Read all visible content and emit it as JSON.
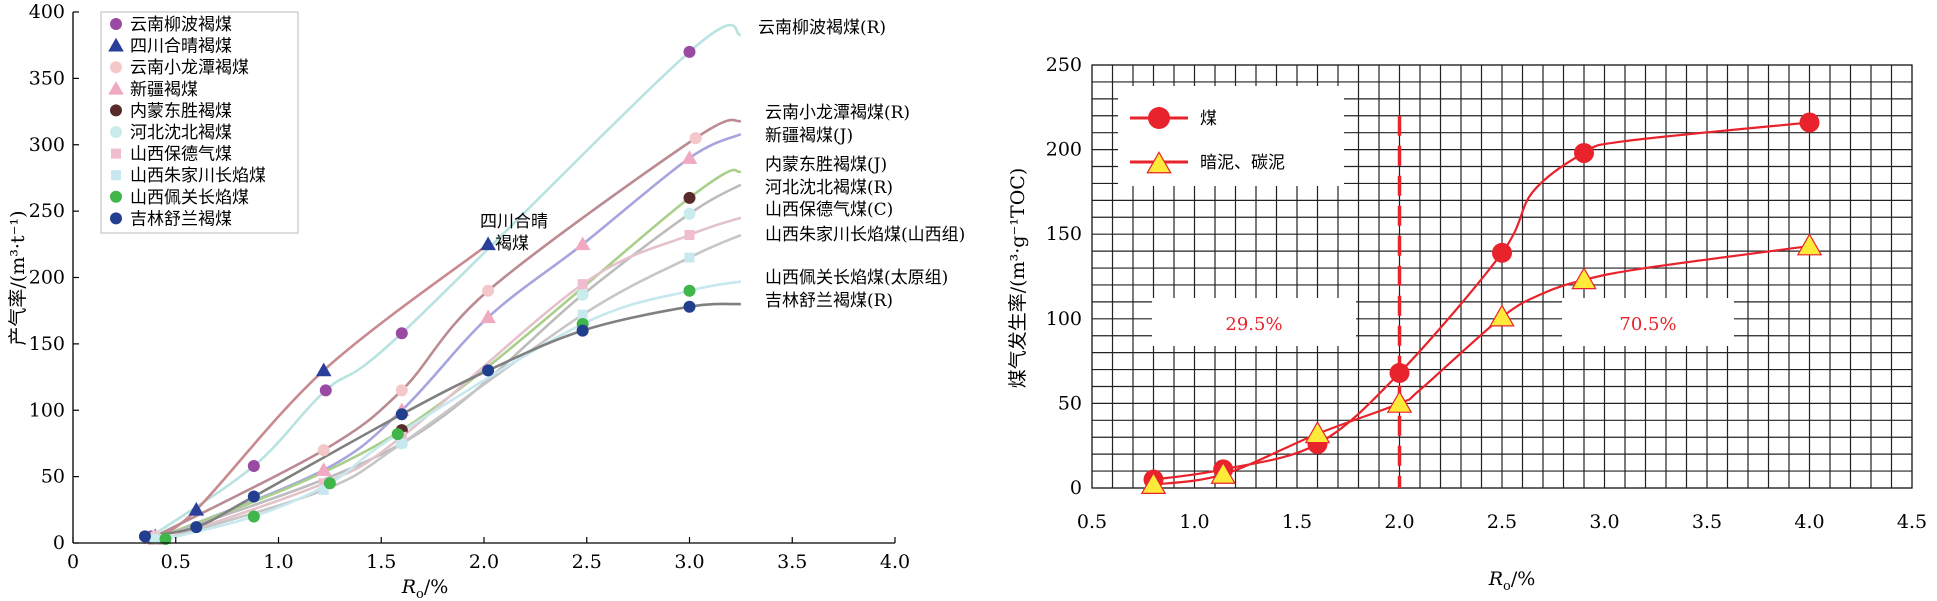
{
  "chart_data": [
    {
      "type": "line",
      "xlabel": "R",
      "xlabel_sub": "o",
      "xlabel_unit": "/%",
      "ylabel": "产气率/(m³·t⁻¹)",
      "xlim": [
        0,
        4.0
      ],
      "ylim": [
        0,
        400
      ],
      "xticks": [
        "0",
        "0.5",
        "1.0",
        "1.5",
        "2.0",
        "2.5",
        "3.0",
        "3.5",
        "4.0"
      ],
      "yticks": [
        "0",
        "50",
        "100",
        "150",
        "200",
        "250",
        "300",
        "350",
        "400"
      ],
      "legend_position": "top-left",
      "series": [
        {
          "name": "云南柳波褐煤",
          "color": "#9b4aa3",
          "marker": "circle",
          "points": [
            [
              0.38,
              5
            ],
            [
              0.88,
              58
            ],
            [
              1.23,
              115
            ],
            [
              1.6,
              158
            ],
            [
              3.0,
              370
            ]
          ]
        },
        {
          "name": "四川合晴褐煤",
          "color": "#2a3f9b",
          "marker": "triangle",
          "points": [
            [
              0.4,
              5
            ],
            [
              0.6,
              25
            ],
            [
              1.22,
              130
            ],
            [
              2.02,
              225
            ]
          ]
        },
        {
          "name": "云南小龙潭褐煤",
          "color": "#f4c7c8",
          "marker": "circle",
          "points": [
            [
              0.4,
              5
            ],
            [
              1.22,
              70
            ],
            [
              1.6,
              115
            ],
            [
              2.02,
              190
            ],
            [
              3.03,
              305
            ]
          ]
        },
        {
          "name": "新疆褐煤",
          "color": "#f0a9c0",
          "marker": "triangle",
          "points": [
            [
              0.4,
              3
            ],
            [
              1.22,
              55
            ],
            [
              1.6,
              100
            ],
            [
              2.02,
              170
            ],
            [
              2.48,
              225
            ],
            [
              3.0,
              290
            ]
          ]
        },
        {
          "name": "内蒙东胜褐煤",
          "color": "#5a2b2b",
          "marker": "circle",
          "points": [
            [
              0.4,
              3
            ],
            [
              1.6,
              85
            ],
            [
              3.0,
              260
            ]
          ]
        },
        {
          "name": "河北沈北褐煤",
          "color": "#c9ecec",
          "marker": "circle",
          "points": [
            [
              0.4,
              3
            ],
            [
              1.6,
              75
            ],
            [
              2.48,
              187
            ],
            [
              3.0,
              248
            ]
          ]
        },
        {
          "name": "山西保德气煤",
          "color": "#f0bcd0",
          "marker": "square",
          "points": [
            [
              0.45,
              3
            ],
            [
              1.22,
              45
            ],
            [
              1.6,
              80
            ],
            [
              2.48,
              195
            ],
            [
              3.0,
              232
            ]
          ]
        },
        {
          "name": "山西朱家川长焰煤",
          "color": "#c6e8ee",
          "marker": "square",
          "points": [
            [
              0.45,
              3
            ],
            [
              1.22,
              40
            ],
            [
              1.6,
              75
            ],
            [
              2.48,
              172
            ],
            [
              3.0,
              215
            ]
          ]
        },
        {
          "name": "山西佩关长焰煤",
          "color": "#3fb54a",
          "marker": "circle",
          "points": [
            [
              0.45,
              3
            ],
            [
              0.88,
              20
            ],
            [
              1.25,
              45
            ],
            [
              1.58,
              82
            ],
            [
              2.48,
              165
            ],
            [
              3.0,
              190
            ]
          ]
        },
        {
          "name": "吉林舒兰褐煤",
          "color": "#213f8e",
          "marker": "circle",
          "points": [
            [
              0.35,
              5
            ],
            [
              0.6,
              12
            ],
            [
              0.88,
              35
            ],
            [
              1.6,
              97
            ],
            [
              2.02,
              130
            ],
            [
              2.48,
              160
            ],
            [
              3.0,
              178
            ]
          ]
        }
      ],
      "curve_labels": [
        "云南柳波褐煤(R)",
        "云南小龙潭褐煤(R)",
        "新疆褐煤(J)",
        "内蒙东胜褐煤(J)",
        "河北沈北褐煤(R)",
        "山西保德气煤(C)",
        "山西朱家川长焰煤(山西组)",
        "山西佩关长焰煤(太原组)",
        "吉林舒兰褐煤(R)"
      ],
      "inline_label_line1": "四川合晴",
      "inline_label_line2": "褐煤"
    },
    {
      "type": "line",
      "xlabel": "R",
      "xlabel_sub": "o",
      "xlabel_unit": "/%",
      "ylabel": "煤气发生率/(m³·g⁻¹TOC)",
      "xlim": [
        0.5,
        4.5
      ],
      "ylim": [
        0,
        250
      ],
      "xticks": [
        "0.5",
        "1.0",
        "1.5",
        "2.0",
        "2.5",
        "3.0",
        "3.5",
        "4.0",
        "4.5"
      ],
      "yticks": [
        "0",
        "50",
        "100",
        "150",
        "200",
        "250"
      ],
      "grid": true,
      "legend_position": "top-left",
      "series": [
        {
          "name": "煤",
          "color": "#e8232b",
          "marker": "circle",
          "points": [
            [
              0.8,
              5
            ],
            [
              1.14,
              11
            ],
            [
              1.6,
              26
            ],
            [
              2.0,
              68
            ],
            [
              2.5,
              139
            ],
            [
              2.9,
              198
            ],
            [
              4.0,
              216
            ]
          ]
        },
        {
          "name": "暗泥、碳泥",
          "color": "#e8232b",
          "marker": "triangle",
          "points": [
            [
              0.8,
              2
            ],
            [
              1.14,
              8
            ],
            [
              1.6,
              32
            ],
            [
              2.0,
              50
            ],
            [
              2.5,
              101
            ],
            [
              2.9,
              123
            ],
            [
              4.0,
              143
            ]
          ]
        }
      ],
      "reference_line_x": 2.0,
      "annotations": [
        "29.5%",
        "70.5%"
      ]
    }
  ]
}
